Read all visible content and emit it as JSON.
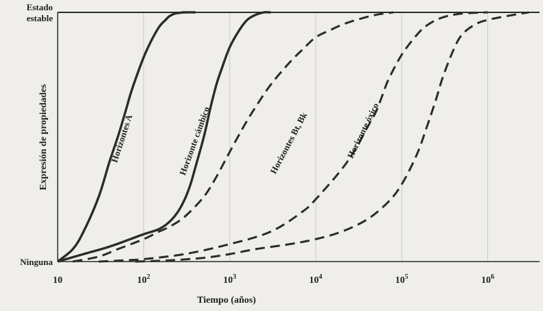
{
  "chart_data": {
    "type": "line",
    "xlabel": "Tiempo (años)",
    "ylabel": "Expresión de propiedades",
    "x_scale": "log",
    "xlim": [
      10,
      4000000
    ],
    "ylim": [
      0,
      1
    ],
    "x_ticks": [
      {
        "value": 10,
        "base": "10",
        "exp": ""
      },
      {
        "value": 100,
        "base": "10",
        "exp": "2"
      },
      {
        "value": 1000,
        "base": "10",
        "exp": "3"
      },
      {
        "value": 10000,
        "base": "10",
        "exp": "4"
      },
      {
        "value": 100000,
        "base": "10",
        "exp": "5"
      },
      {
        "value": 1000000,
        "base": "10",
        "exp": "6"
      }
    ],
    "y_ticks": [
      {
        "value": 1,
        "lines": [
          "Estado",
          "estable"
        ]
      },
      {
        "value": 0,
        "lines": [
          "Ninguna"
        ]
      }
    ],
    "grid": "vertical lines at each decade",
    "legend": "none",
    "series": [
      {
        "label": "Horizontes A",
        "style": "solid",
        "x": [
          10,
          15,
          20,
          30,
          40,
          50,
          60,
          70,
          80,
          100,
          120,
          150,
          180,
          200,
          230,
          260,
          300,
          400
        ],
        "y": [
          0,
          0.05,
          0.12,
          0.26,
          0.4,
          0.5,
          0.59,
          0.67,
          0.73,
          0.82,
          0.88,
          0.94,
          0.97,
          0.985,
          0.995,
          0.998,
          1,
          1
        ]
      },
      {
        "label": "Horizonte cámbico",
        "style": "solid",
        "x": [
          10,
          20,
          40,
          70,
          100,
          150,
          200,
          250,
          300,
          350,
          400,
          500,
          600,
          700,
          800,
          1000,
          1300,
          1600,
          2000,
          2500,
          3000
        ],
        "y": [
          0,
          0.03,
          0.06,
          0.09,
          0.11,
          0.13,
          0.16,
          0.2,
          0.25,
          0.31,
          0.38,
          0.5,
          0.62,
          0.71,
          0.77,
          0.86,
          0.93,
          0.97,
          0.99,
          1,
          1
        ]
      },
      {
        "label": "Horizontes Bt, Bk",
        "style": "dashed",
        "x": [
          15,
          30,
          50,
          100,
          150,
          200,
          300,
          500,
          700,
          1000,
          1500,
          2000,
          3000,
          5000,
          7000,
          10000,
          15000,
          20000,
          30000,
          50000,
          80000
        ],
        "y": [
          0,
          0.02,
          0.05,
          0.09,
          0.12,
          0.14,
          0.18,
          0.26,
          0.34,
          0.44,
          0.55,
          0.62,
          0.71,
          0.8,
          0.85,
          0.9,
          0.93,
          0.95,
          0.97,
          0.99,
          1
        ]
      },
      {
        "label": "Horizonte óxico",
        "style": "dashed",
        "x": [
          30,
          60,
          100,
          300,
          1000,
          3000,
          7000,
          10000,
          20000,
          30000,
          40000,
          50000,
          60000,
          70000,
          100000,
          150000,
          200000,
          300000,
          500000,
          1000000
        ],
        "y": [
          0,
          0.005,
          0.01,
          0.03,
          0.07,
          0.12,
          0.2,
          0.25,
          0.37,
          0.46,
          0.54,
          0.6,
          0.67,
          0.73,
          0.83,
          0.91,
          0.95,
          0.98,
          0.995,
          1
        ]
      },
      {
        "label": "",
        "style": "dashed",
        "x": [
          80,
          200,
          500,
          1000,
          2000,
          5000,
          10000,
          20000,
          40000,
          70000,
          100000,
          150000,
          200000,
          250000,
          300000,
          400000,
          500000,
          700000,
          1000000,
          2000000,
          3000000
        ],
        "y": [
          0,
          0.005,
          0.015,
          0.03,
          0.05,
          0.07,
          0.09,
          0.12,
          0.17,
          0.24,
          0.31,
          0.43,
          0.55,
          0.65,
          0.74,
          0.85,
          0.91,
          0.95,
          0.97,
          0.99,
          1
        ]
      }
    ]
  }
}
